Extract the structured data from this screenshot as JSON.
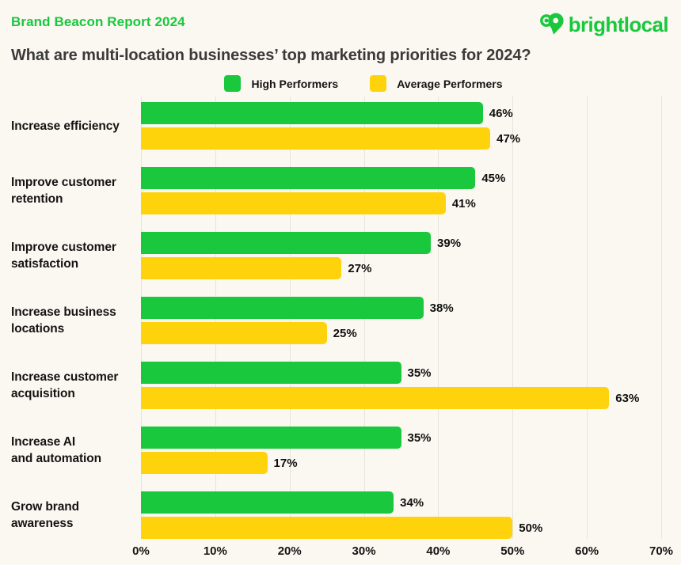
{
  "header": {
    "report_label": "Brand Beacon Report 2024",
    "title": "What are multi-location businesses’ top marketing priorities for 2024?",
    "logo_text": "brightlocal"
  },
  "colors": {
    "background": "#FBF8F1",
    "brand_green": "#19C83D",
    "series_green": "#19C83D",
    "series_yellow": "#FFD30B",
    "gridline": "#E7E4DC",
    "title_text": "#3A3A3A",
    "body_text": "#141414"
  },
  "chart_data": {
    "type": "bar",
    "orientation": "horizontal",
    "title": "What are multi-location businesses’ top marketing priorities for 2024?",
    "categories": [
      "Increase efficiency",
      "Improve customer retention",
      "Improve customer satisfaction",
      "Increase business locations",
      "Increase customer acquisition",
      "Increase AI and automation",
      "Grow brand awareness"
    ],
    "category_lines": [
      [
        "Increase efficiency"
      ],
      [
        "Improve customer",
        "retention"
      ],
      [
        "Improve customer",
        "satisfaction"
      ],
      [
        "Increase business",
        "locations"
      ],
      [
        "Increase customer",
        "acquisition"
      ],
      [
        "Increase AI",
        "and automation"
      ],
      [
        "Grow brand",
        "awareness"
      ]
    ],
    "series": [
      {
        "name": "High Performers",
        "color": "#19C83D",
        "values": [
          46,
          45,
          39,
          38,
          35,
          35,
          34
        ]
      },
      {
        "name": "Average Performers",
        "color": "#FFD30B",
        "values": [
          47,
          41,
          27,
          25,
          63,
          17,
          50
        ]
      }
    ],
    "value_suffix": "%",
    "xlabel": "",
    "ylabel": "",
    "xlim": [
      0,
      70
    ],
    "xticks": [
      "0%",
      "10%",
      "20%",
      "30%",
      "40%",
      "50%",
      "60%",
      "70%"
    ],
    "grid": true,
    "legend_position": "top"
  }
}
